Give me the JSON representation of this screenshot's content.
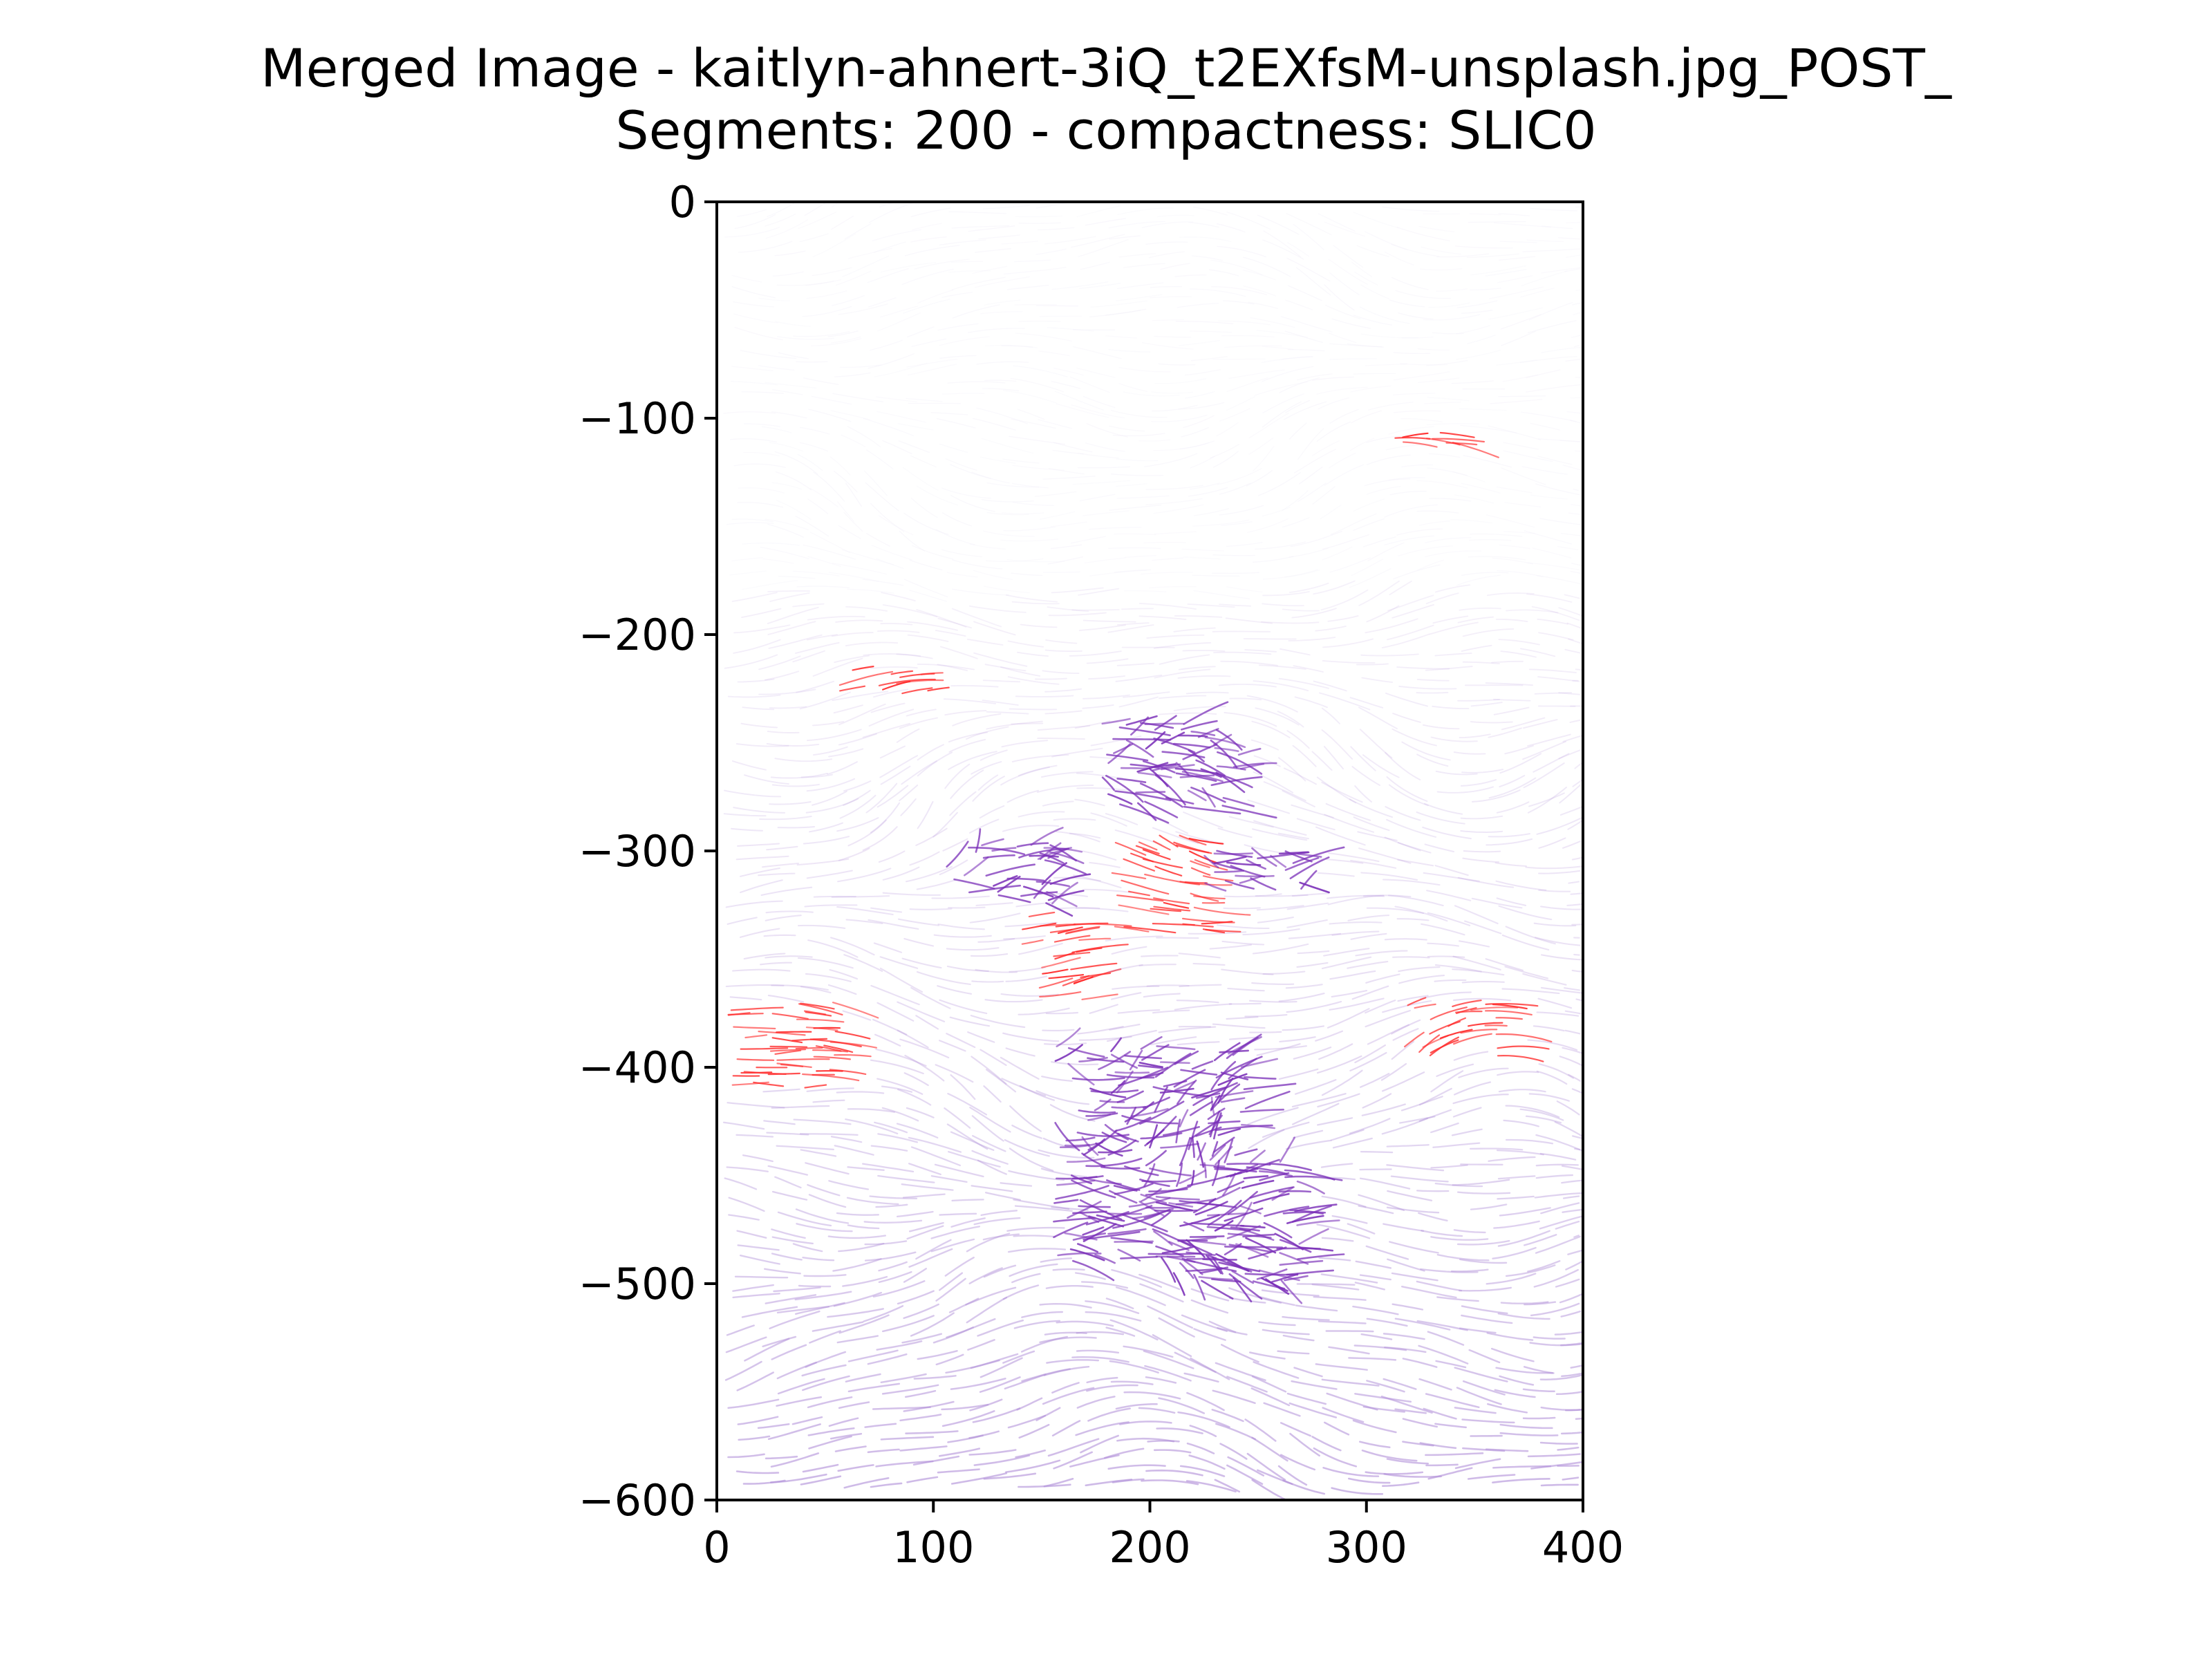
{
  "chart_data": {
    "type": "streamplot",
    "title": "Merged Image - kaitlyn-ahnert-3iQ_t2EXfsM-unsplash.jpg_POST_",
    "subtitle": "Segments: 200 - compactness: SLIC0",
    "xlabel": "",
    "ylabel": "",
    "xlim": [
      0,
      400
    ],
    "ylim": [
      -600,
      0
    ],
    "x_ticks": [
      0,
      100,
      200,
      300,
      400
    ],
    "y_ticks": [
      0,
      -100,
      -200,
      -300,
      -400,
      -500,
      -600
    ],
    "x_tick_labels": [
      "0",
      "100",
      "200",
      "300",
      "400"
    ],
    "y_tick_labels": [
      "0",
      "−100",
      "−200",
      "−300",
      "−400",
      "−500",
      "−600"
    ],
    "grid": false,
    "colors": {
      "low_magnitude": "#f1eef8",
      "mid_magnitude": "#b08fd8",
      "high_magnitude": "#7a2fb8",
      "highlight": "#ff2a2a"
    },
    "red_regions": [
      {
        "x": 30,
        "y": -390,
        "w": 50,
        "h": 40
      },
      {
        "x": 155,
        "y": -350,
        "w": 30,
        "h": 40
      },
      {
        "x": 205,
        "y": -315,
        "w": 45,
        "h": 45
      },
      {
        "x": 75,
        "y": -222,
        "w": 45,
        "h": 12
      },
      {
        "x": 340,
        "y": -383,
        "w": 45,
        "h": 25
      },
      {
        "x": 330,
        "y": -110,
        "w": 35,
        "h": 12
      }
    ],
    "dark_regions": [
      {
        "x": 200,
        "y": -440,
        "w": 90,
        "h": 100
      },
      {
        "x": 130,
        "y": -310,
        "w": 50,
        "h": 30
      },
      {
        "x": 250,
        "y": -308,
        "w": 50,
        "h": 20
      },
      {
        "x": 240,
        "y": -470,
        "w": 60,
        "h": 60
      },
      {
        "x": 210,
        "y": -260,
        "w": 70,
        "h": 40
      }
    ]
  }
}
